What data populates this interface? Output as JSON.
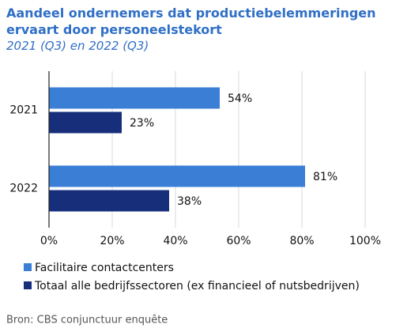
{
  "chart_data": {
    "type": "bar",
    "orientation": "horizontal",
    "title": "Aandeel ondernemers dat productiebelemmeringen ervaart door personeelstekort",
    "subtitle": "2021 (Q3) en 2022 (Q3)",
    "categories": [
      "2021",
      "2022"
    ],
    "series": [
      {
        "name": "Facilitaire contactcenters",
        "color": "#3a7fd5",
        "values": [
          54,
          81
        ],
        "value_labels": [
          "54%",
          "81%"
        ]
      },
      {
        "name": "Totaal alle bedrijfssectoren (ex financieel of nutsbedrijven)",
        "color": "#172f7b",
        "values": [
          23,
          38
        ],
        "value_labels": [
          "23%",
          "38%"
        ]
      }
    ],
    "xlim": [
      0,
      100
    ],
    "xticks": [
      {
        "value": 0,
        "label": "0%"
      },
      {
        "value": 20,
        "label": "20%"
      },
      {
        "value": 40,
        "label": "40%"
      },
      {
        "value": 60,
        "label": "60%"
      },
      {
        "value": 80,
        "label": "80%"
      },
      {
        "value": 100,
        "label": "100%"
      }
    ],
    "grid": true,
    "source": "Bron: CBS conjunctuur enquête"
  }
}
